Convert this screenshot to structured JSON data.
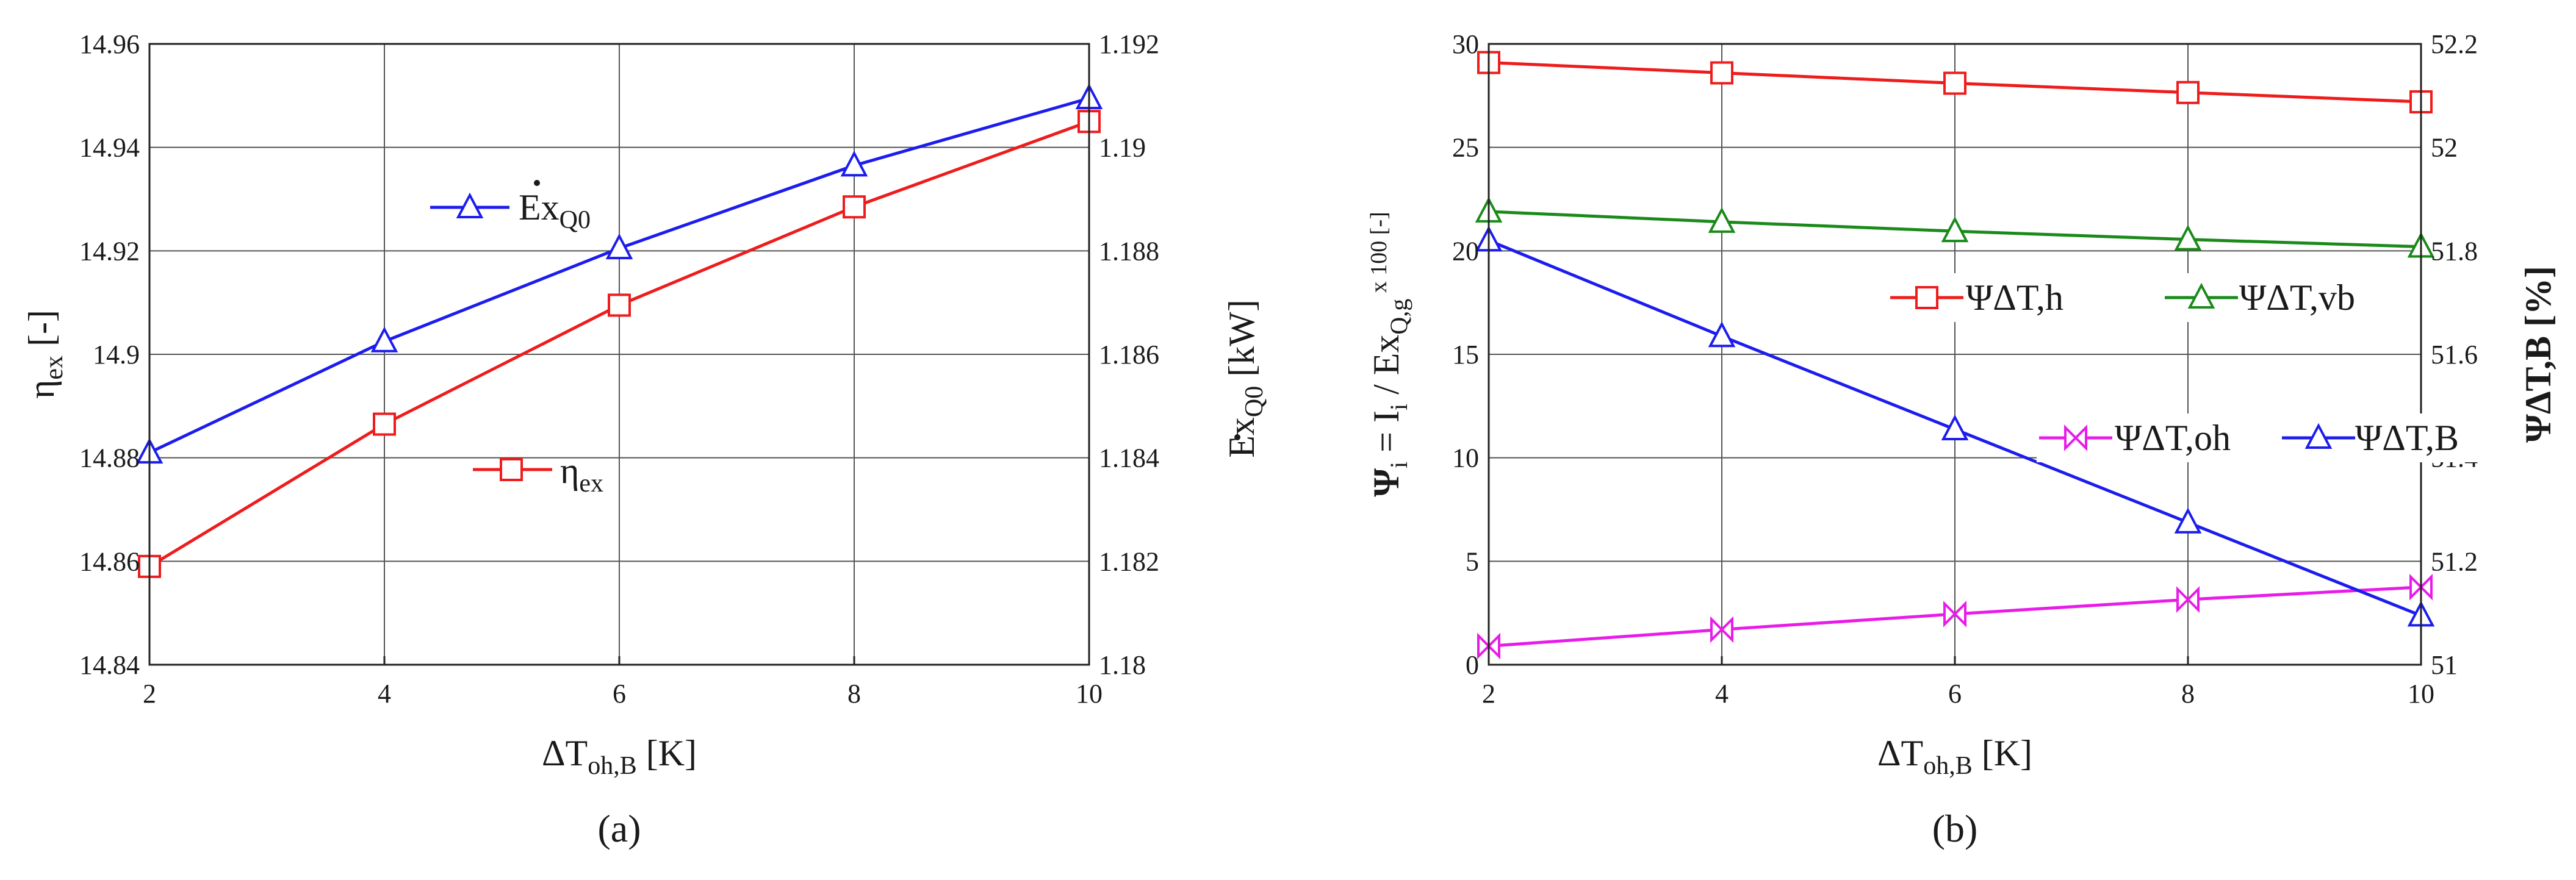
{
  "chart_data": [
    {
      "type": "line",
      "panel_label": "(a)",
      "x": [
        2,
        4,
        6,
        8,
        10
      ],
      "xlabel": "ΔT",
      "xlabel_sub": "oh,B",
      "xlabel_unit": "[K]",
      "xlim": [
        2,
        10
      ],
      "xticks": [
        "2",
        "4",
        "6",
        "8",
        "10"
      ],
      "ylabel": "η",
      "ylabel_sub": "ex",
      "ylabel_unit": "[-]",
      "ylim": [
        14.84,
        14.96
      ],
      "yticks": [
        "14.84",
        "14.86",
        "14.88",
        "14.9",
        "14.92",
        "14.94",
        "14.96"
      ],
      "y2label": "Ex",
      "y2label_sub": "Q0",
      "y2label_unit": "[kW]",
      "y2lim": [
        1.18,
        1.192
      ],
      "y2ticks": [
        "1.18",
        "1.182",
        "1.184",
        "1.186",
        "1.188",
        "1.19",
        "1.192"
      ],
      "grid": true,
      "series": [
        {
          "name": "η",
          "name_sub": "ex",
          "axis": "left",
          "color": "#ee1c1c",
          "marker": "square",
          "values": [
            14.859,
            14.8865,
            14.9095,
            14.9285,
            14.945
          ]
        },
        {
          "name": "Ex",
          "name_sub": "Q0",
          "axis": "right",
          "color": "#1c1cee",
          "marker": "triangle",
          "values": [
            1.1841,
            1.18625,
            1.18805,
            1.18965,
            1.19095
          ]
        }
      ]
    },
    {
      "type": "line",
      "panel_label": "(b)",
      "x": [
        2,
        4,
        6,
        8,
        10
      ],
      "xlabel": "ΔT",
      "xlabel_sub": "oh,B",
      "xlabel_unit": "[K]",
      "xlim": [
        2,
        10
      ],
      "xticks": [
        "2",
        "4",
        "6",
        "8",
        "10"
      ],
      "ylabel_parts": [
        "Ψ",
        "i",
        " = I",
        "i",
        " / Ex",
        "Q,g",
        " x 100 [-]"
      ],
      "ylim": [
        0,
        30
      ],
      "yticks": [
        "0",
        "5",
        "10",
        "15",
        "20",
        "25",
        "30"
      ],
      "y2label": "ΨΔT,B [%]",
      "y2lim": [
        51,
        52.2
      ],
      "y2ticks": [
        "51",
        "51.2",
        "51.4",
        "51.6",
        "51.8",
        "52",
        "52.2"
      ],
      "grid": true,
      "series": [
        {
          "name": "ΨΔT,h",
          "axis": "left",
          "color": "#ee1c1c",
          "marker": "square",
          "values": [
            29.1,
            28.6,
            28.1,
            27.65,
            27.2
          ]
        },
        {
          "name": "ΨΔT,vb",
          "axis": "left",
          "color": "#1a8a1a",
          "marker": "triangle",
          "values": [
            21.9,
            21.4,
            20.95,
            20.55,
            20.2
          ]
        },
        {
          "name": "ΨΔT,oh",
          "axis": "left",
          "color": "#e81ce8",
          "marker": "bowtie",
          "values": [
            0.9,
            1.7,
            2.45,
            3.15,
            3.75
          ]
        },
        {
          "name": "ΨΔT,B",
          "axis": "right",
          "color": "#1c1cee",
          "marker": "triangle",
          "values": [
            51.82,
            51.635,
            51.455,
            51.275,
            51.095
          ]
        }
      ]
    }
  ]
}
